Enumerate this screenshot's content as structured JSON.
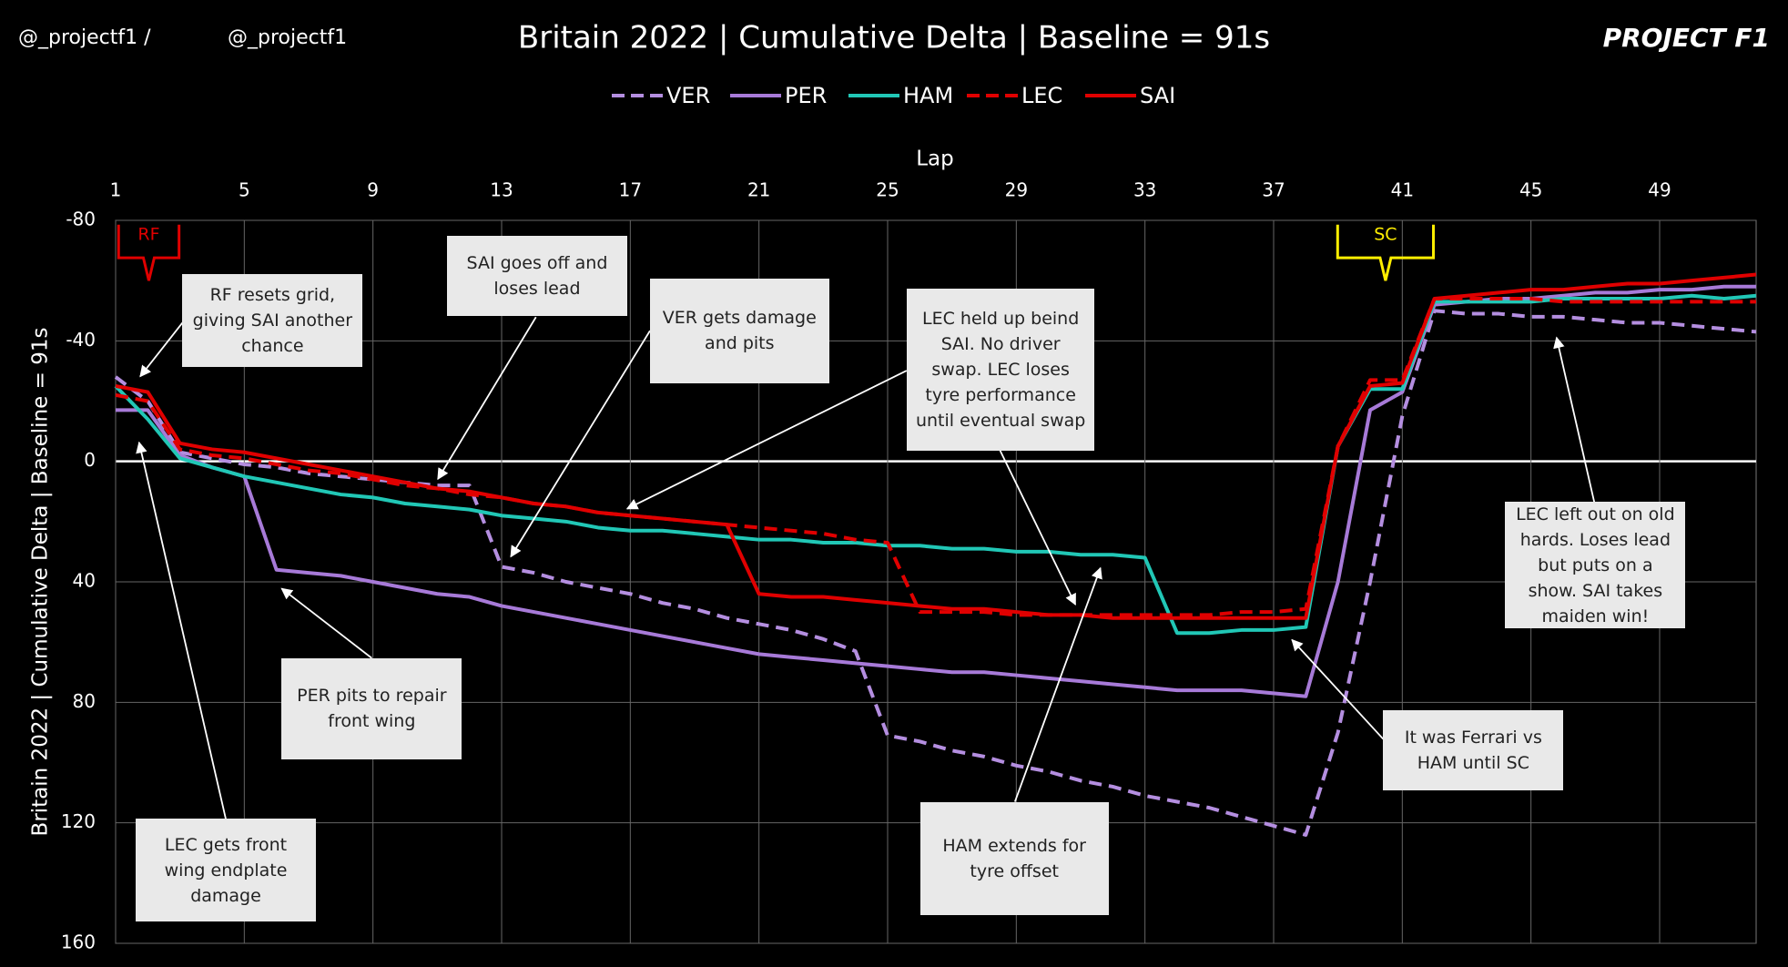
{
  "header": {
    "handle_left": "@_projectf1 /",
    "handle_right": "@_projectf1",
    "logo": "PROJECT F1"
  },
  "chart_data": {
    "type": "line",
    "title": "Britain 2022 | Cumulative Delta | Baseline = 91s",
    "x_label": "Lap",
    "y_label": "Britain 2022 | Cumulative Delta | Baseline = 91s",
    "x": [
      1,
      2,
      3,
      4,
      5,
      6,
      7,
      8,
      9,
      10,
      11,
      12,
      13,
      14,
      15,
      16,
      17,
      18,
      19,
      20,
      21,
      22,
      23,
      24,
      25,
      26,
      27,
      28,
      29,
      30,
      31,
      32,
      33,
      34,
      35,
      36,
      37,
      38,
      39,
      40,
      41,
      42,
      43,
      44,
      45,
      46,
      47,
      48,
      49,
      50,
      51,
      52
    ],
    "xlim": [
      1,
      52
    ],
    "xticks": [
      1,
      5,
      9,
      13,
      17,
      21,
      25,
      29,
      33,
      37,
      41,
      45,
      49
    ],
    "ylim": [
      -80,
      160
    ],
    "yticks": [
      -80,
      -40,
      0,
      40,
      80,
      120,
      160
    ],
    "y_reversed": true,
    "grid": true,
    "series": [
      {
        "name": "VER",
        "color": "#b48ee0",
        "dash": true,
        "values": [
          -28,
          -20,
          -3,
          -1,
          1,
          2,
          4,
          5,
          6,
          7,
          8,
          8,
          35,
          37,
          40,
          42,
          44,
          47,
          49,
          52,
          54,
          56,
          59,
          63,
          91,
          93,
          96,
          98,
          101,
          103,
          106,
          108,
          111,
          113,
          115,
          118,
          121,
          124,
          90,
          40,
          -15,
          -50,
          -49,
          -49,
          -48,
          -48,
          -47,
          -46,
          -46,
          -45,
          -44,
          -43
        ]
      },
      {
        "name": "PER",
        "color": "#a77ad8",
        "dash": false,
        "values": [
          -17,
          -17,
          -2,
          2,
          5,
          36,
          37,
          38,
          40,
          42,
          44,
          45,
          48,
          50,
          52,
          54,
          56,
          58,
          60,
          62,
          64,
          65,
          66,
          67,
          68,
          69,
          70,
          70,
          71,
          72,
          73,
          74,
          75,
          76,
          76,
          76,
          77,
          78,
          40,
          -17,
          -23,
          -52,
          -53,
          -54,
          -54,
          -55,
          -56,
          -56,
          -57,
          -57,
          -58,
          -58
        ]
      },
      {
        "name": "HAM",
        "color": "#21c7b6",
        "dash": false,
        "values": [
          -25,
          -14,
          -1,
          2,
          5,
          7,
          9,
          11,
          12,
          14,
          15,
          16,
          18,
          19,
          20,
          22,
          23,
          23,
          24,
          25,
          26,
          26,
          27,
          27,
          28,
          28,
          29,
          29,
          30,
          30,
          31,
          31,
          32,
          57,
          57,
          56,
          56,
          55,
          -5,
          -24,
          -24,
          -53,
          -53,
          -53,
          -53,
          -54,
          -54,
          -54,
          -54,
          -55,
          -54,
          -55
        ]
      },
      {
        "name": "LEC",
        "color": "#e00000",
        "dash": true,
        "values": [
          -22,
          -20,
          -4,
          -2,
          -1,
          1,
          3,
          4,
          6,
          8,
          9,
          11,
          12,
          14,
          15,
          17,
          18,
          19,
          20,
          21,
          22,
          23,
          24,
          26,
          27,
          50,
          50,
          50,
          51,
          51,
          51,
          51,
          51,
          51,
          51,
          50,
          50,
          49,
          -5,
          -27,
          -27,
          -54,
          -54,
          -54,
          -54,
          -53,
          -53,
          -53,
          -53,
          -53,
          -53,
          -53
        ]
      },
      {
        "name": "SAI",
        "color": "#e00000",
        "dash": false,
        "values": [
          -25,
          -23,
          -6,
          -4,
          -3,
          -1,
          1,
          3,
          5,
          7,
          9,
          10,
          12,
          14,
          15,
          17,
          18,
          19,
          20,
          21,
          44,
          45,
          45,
          46,
          47,
          48,
          49,
          49,
          50,
          51,
          51,
          52,
          52,
          52,
          52,
          52,
          52,
          52,
          -5,
          -25,
          -26,
          -54,
          -55,
          -56,
          -57,
          -57,
          -58,
          -59,
          -59,
          -60,
          -61,
          -62
        ]
      }
    ],
    "markers": [
      "RF",
      "SC"
    ],
    "annotations": [
      "RF resets grid, giving SAI another chance",
      "SAI goes off and loses lead",
      "VER gets damage and pits",
      "LEC held up beind SAI. No driver swap. LEC loses tyre performance until eventual swap",
      "PER pits to repair front wing",
      "LEC gets front wing endplate damage",
      "HAM extends for tyre offset",
      "It was Ferrari vs HAM until SC",
      "LEC left out on old hards. Loses lead but puts on a show. SAI takes maiden win!"
    ]
  }
}
